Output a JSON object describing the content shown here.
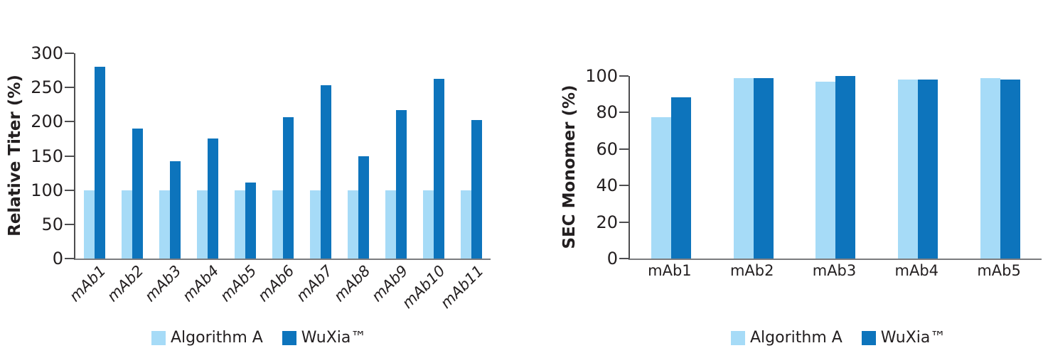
{
  "colors": {
    "algorithm_a": "#a6dbf7",
    "wuxia": "#0d74bc",
    "axis_line": "#4d4d4f",
    "baseline": "#7b7c7f",
    "text": "#231f20"
  },
  "chart_data": [
    {
      "id": "relative-titer",
      "type": "bar",
      "ylabel": "Relative Titer (%)",
      "xlabel": "",
      "ylim": [
        0,
        300
      ],
      "yticks": [
        0,
        50,
        100,
        150,
        200,
        250,
        300
      ],
      "categories": [
        "mAb1",
        "mAb2",
        "mAb3",
        "mAb4",
        "mAb5",
        "mAb6",
        "mAb7",
        "mAb8",
        "mAb9",
        "mAb10",
        "mAb11"
      ],
      "series": [
        {
          "name": "Algorithm A",
          "color": "#a6dbf7",
          "values": [
            100,
            100,
            100,
            100,
            100,
            100,
            100,
            100,
            100,
            100,
            100
          ]
        },
        {
          "name": "WuXia™",
          "color": "#0d74bc",
          "values": [
            280,
            190,
            142,
            175,
            111,
            207,
            253,
            150,
            217,
            263,
            202
          ]
        }
      ],
      "grid": false,
      "legend_position": "bottom",
      "x_tick_style": "italic-rotated-45"
    },
    {
      "id": "sec-monomer",
      "type": "bar",
      "ylabel": "SEC Monomer (%)",
      "xlabel": "",
      "ylim": [
        0,
        100
      ],
      "yticks": [
        0,
        20,
        40,
        60,
        80,
        100
      ],
      "categories": [
        "mAb1",
        "mAb2",
        "mAb3",
        "mAb4",
        "mAb5"
      ],
      "series": [
        {
          "name": "Algorithm A",
          "color": "#a6dbf7",
          "values": [
            77.5,
            99,
            97,
            98,
            99
          ]
        },
        {
          "name": "WuXia™",
          "color": "#0d74bc",
          "values": [
            88.5,
            99,
            100,
            98,
            98
          ]
        }
      ],
      "grid": false,
      "legend_position": "bottom",
      "x_tick_style": "horizontal"
    }
  ]
}
